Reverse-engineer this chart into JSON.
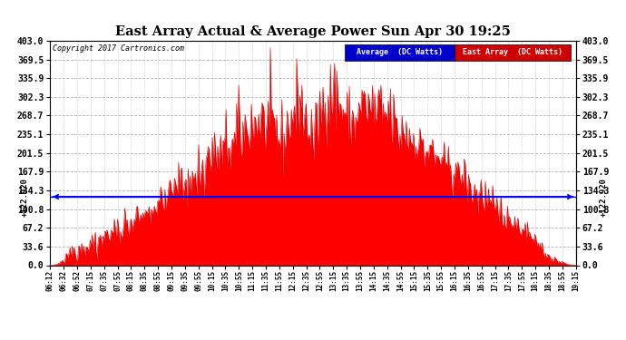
{
  "title": "East Array Actual & Average Power Sun Apr 30 19:25",
  "copyright": "Copyright 2017 Cartronics.com",
  "average_value": 122.92,
  "y_label_str": "+122.920",
  "y_ticks": [
    0.0,
    33.6,
    67.2,
    100.8,
    134.3,
    167.9,
    201.5,
    235.1,
    268.7,
    302.3,
    335.9,
    369.5,
    403.0
  ],
  "ylim": [
    0.0,
    403.0
  ],
  "legend_avg_bg": "#0000cc",
  "legend_east_bg": "#cc0000",
  "legend_avg_text": "Average  (DC Watts)",
  "legend_east_text": "East Array  (DC Watts)",
  "fill_color": "#ff0000",
  "avg_line_color": "#0000ff",
  "bg_color": "#ffffff",
  "grid_color": "#aaaaaa",
  "x_tick_labels": [
    "06:12",
    "06:32",
    "06:52",
    "07:15",
    "07:35",
    "07:55",
    "08:15",
    "08:35",
    "08:55",
    "09:15",
    "09:35",
    "09:55",
    "10:15",
    "10:35",
    "10:55",
    "11:15",
    "11:35",
    "11:55",
    "12:15",
    "12:35",
    "12:55",
    "13:15",
    "13:35",
    "13:55",
    "14:15",
    "14:35",
    "14:55",
    "15:15",
    "15:35",
    "15:55",
    "16:15",
    "16:35",
    "16:55",
    "17:15",
    "17:35",
    "17:55",
    "18:15",
    "18:35",
    "18:55",
    "19:15"
  ]
}
